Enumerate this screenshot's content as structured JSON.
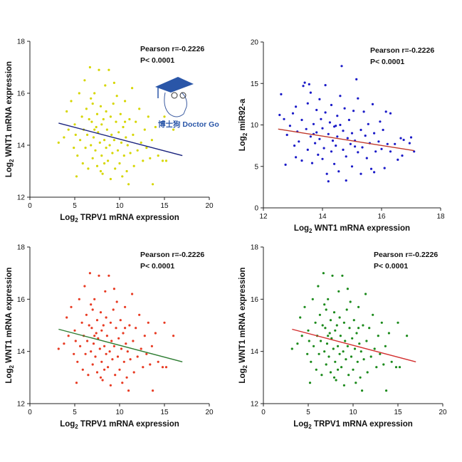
{
  "watermark": {
    "text": "博士狗 Doctor Go",
    "color": "#2a56a8"
  },
  "chart_data": [
    {
      "type": "scatter",
      "xlabel": [
        "Log",
        "2",
        " TRPV1 mRNA expression"
      ],
      "ylabel": [
        "Log",
        "2",
        " WNT1 mRNA expression"
      ],
      "xlim": [
        0,
        20
      ],
      "ylim": [
        12,
        18
      ],
      "xticks": [
        0,
        5,
        10,
        15,
        20
      ],
      "yticks": [
        12,
        14,
        16,
        18
      ],
      "annotations": [
        "Pearson r=-0.2226",
        "P< 0.0001"
      ],
      "point_color": "#d6d600",
      "line_color": "#1a237e",
      "fit_line": [
        [
          3.2,
          14.85
        ],
        [
          17,
          13.6
        ]
      ],
      "dataset": "A"
    },
    {
      "type": "scatter",
      "xlabel": [
        "Log",
        "2",
        " WNT1 mRNA expression"
      ],
      "ylabel": [
        "Log",
        "2",
        " miR92-a"
      ],
      "xlim": [
        12,
        18
      ],
      "ylim": [
        0,
        20
      ],
      "xticks": [
        12,
        14,
        16,
        18
      ],
      "yticks": [
        0,
        5,
        10,
        15,
        20
      ],
      "annotations": [
        "Pearson r=-0.2226",
        "P< 0.0001"
      ],
      "point_color": "#1a1ac8",
      "line_color": "#c0392b",
      "fit_line": [
        [
          12.5,
          9.5
        ],
        [
          17.1,
          6.9
        ]
      ],
      "dataset": "B"
    },
    {
      "type": "scatter",
      "xlabel": [
        "Log",
        "2",
        " TRPV1 mRNA expression"
      ],
      "ylabel": [
        "Log",
        "2",
        " WNT1 mRNA expression"
      ],
      "xlim": [
        0,
        20
      ],
      "ylim": [
        12,
        18
      ],
      "xticks": [
        0,
        5,
        10,
        15,
        20
      ],
      "yticks": [
        12,
        14,
        16,
        18
      ],
      "annotations": [
        "Pearson r=-0.2226",
        "P< 0.0001"
      ],
      "point_color": "#e83a22",
      "line_color": "#2e7d32",
      "fit_line": [
        [
          3.2,
          14.85
        ],
        [
          17,
          13.6
        ]
      ],
      "dataset": "A"
    },
    {
      "type": "scatter",
      "xlabel": [
        "Log",
        "2",
        " TRPV1 mRNA expression"
      ],
      "ylabel": [
        "Log",
        "2",
        " WNT1 mRNA expression"
      ],
      "xlim": [
        0,
        20
      ],
      "ylim": [
        12,
        18
      ],
      "xticks": [
        0,
        5,
        10,
        15,
        20
      ],
      "yticks": [
        12,
        14,
        16,
        18
      ],
      "annotations": [
        "Pearson r=-0.2226",
        "P< 0.0001"
      ],
      "point_color": "#1b8a1b",
      "line_color": "#d32f2f",
      "fit_line": [
        [
          3.2,
          14.85
        ],
        [
          17,
          13.6
        ]
      ],
      "dataset": "A"
    }
  ],
  "datasets": {
    "A": [
      [
        3.2,
        14.1
      ],
      [
        3.8,
        14.3
      ],
      [
        4.1,
        15.3
      ],
      [
        4.3,
        14.6
      ],
      [
        4.6,
        15.7
      ],
      [
        4.9,
        13.9
      ],
      [
        5.0,
        14.8
      ],
      [
        5.2,
        12.8
      ],
      [
        5.3,
        13.6
      ],
      [
        5.5,
        16.0
      ],
      [
        5.6,
        14.2
      ],
      [
        5.8,
        15.1
      ],
      [
        5.9,
        13.3
      ],
      [
        6.0,
        14.6
      ],
      [
        6.1,
        16.5
      ],
      [
        6.2,
        13.9
      ],
      [
        6.3,
        15.4
      ],
      [
        6.4,
        14.4
      ],
      [
        6.5,
        13.1
      ],
      [
        6.6,
        15.0
      ],
      [
        6.7,
        17.0
      ],
      [
        6.8,
        14.0
      ],
      [
        6.9,
        14.9
      ],
      [
        7.0,
        13.5
      ],
      [
        7.0,
        15.6
      ],
      [
        7.1,
        14.3
      ],
      [
        7.2,
        16.0
      ],
      [
        7.3,
        13.8
      ],
      [
        7.4,
        14.7
      ],
      [
        7.5,
        15.2
      ],
      [
        7.5,
        13.2
      ],
      [
        7.6,
        14.5
      ],
      [
        7.7,
        16.9
      ],
      [
        7.8,
        14.1
      ],
      [
        7.9,
        15.5
      ],
      [
        8.0,
        13.6
      ],
      [
        8.0,
        14.8
      ],
      [
        8.1,
        12.9
      ],
      [
        8.2,
        15.0
      ],
      [
        8.3,
        14.2
      ],
      [
        8.4,
        16.3
      ],
      [
        8.5,
        13.9
      ],
      [
        8.5,
        15.3
      ],
      [
        8.6,
        14.6
      ],
      [
        8.7,
        13.4
      ],
      [
        8.8,
        16.9
      ],
      [
        8.9,
        14.0
      ],
      [
        9.0,
        15.1
      ],
      [
        9.0,
        12.7
      ],
      [
        9.1,
        14.4
      ],
      [
        9.2,
        13.7
      ],
      [
        9.3,
        15.6
      ],
      [
        9.4,
        14.2
      ],
      [
        9.5,
        13.1
      ],
      [
        9.6,
        14.9
      ],
      [
        9.7,
        15.9
      ],
      [
        9.8,
        13.8
      ],
      [
        9.9,
        14.5
      ],
      [
        10.0,
        13.3
      ],
      [
        10.1,
        15.2
      ],
      [
        10.2,
        14.1
      ],
      [
        10.3,
        12.8
      ],
      [
        10.4,
        14.7
      ],
      [
        10.5,
        13.6
      ],
      [
        10.6,
        15.7
      ],
      [
        10.7,
        14.3
      ],
      [
        10.8,
        13.0
      ],
      [
        10.9,
        14.0
      ],
      [
        11.0,
        12.5
      ],
      [
        11.1,
        15.0
      ],
      [
        11.2,
        13.7
      ],
      [
        11.4,
        16.2
      ],
      [
        11.5,
        14.4
      ],
      [
        11.6,
        13.2
      ],
      [
        11.8,
        14.9
      ],
      [
        12.0,
        13.8
      ],
      [
        12.2,
        15.4
      ],
      [
        12.4,
        14.1
      ],
      [
        12.6,
        13.4
      ],
      [
        12.8,
        14.6
      ],
      [
        13.0,
        13.9
      ],
      [
        13.2,
        15.1
      ],
      [
        13.4,
        13.5
      ],
      [
        13.6,
        14.2
      ],
      [
        13.7,
        12.5
      ],
      [
        14.0,
        14.7
      ],
      [
        14.3,
        13.6
      ],
      [
        14.8,
        13.4
      ],
      [
        15.2,
        13.4
      ],
      [
        15.0,
        15.1
      ],
      [
        16.0,
        14.6
      ],
      [
        5.1,
        14.4
      ],
      [
        6.8,
        15.8
      ],
      [
        7.9,
        13.0
      ],
      [
        9.4,
        16.4
      ],
      [
        8.3,
        13.3
      ],
      [
        10.6,
        14.9
      ],
      [
        7.2,
        14.6
      ]
    ],
    "B": [
      [
        12.6,
        13.7
      ],
      [
        12.55,
        11.2
      ],
      [
        12.7,
        10.7
      ],
      [
        12.75,
        5.2
      ],
      [
        12.8,
        8.8
      ],
      [
        12.9,
        9.9
      ],
      [
        13.0,
        11.4
      ],
      [
        13.05,
        7.5
      ],
      [
        13.1,
        12.2
      ],
      [
        13.1,
        6.1
      ],
      [
        13.15,
        9.2
      ],
      [
        13.2,
        8.0
      ],
      [
        13.3,
        10.6
      ],
      [
        13.3,
        5.7
      ],
      [
        13.35,
        14.7
      ],
      [
        13.4,
        15.1
      ],
      [
        13.45,
        9.5
      ],
      [
        13.5,
        7.0
      ],
      [
        13.5,
        12.6
      ],
      [
        13.55,
        14.9
      ],
      [
        13.6,
        8.6
      ],
      [
        13.6,
        13.9
      ],
      [
        13.65,
        5.4
      ],
      [
        13.7,
        10.1
      ],
      [
        13.75,
        7.8
      ],
      [
        13.8,
        11.8
      ],
      [
        13.8,
        9.1
      ],
      [
        13.85,
        6.4
      ],
      [
        13.9,
        13.1
      ],
      [
        13.9,
        8.3
      ],
      [
        13.95,
        10.7
      ],
      [
        14.0,
        5.9
      ],
      [
        14.0,
        9.6
      ],
      [
        14.05,
        7.2
      ],
      [
        14.1,
        11.5
      ],
      [
        14.1,
        14.8
      ],
      [
        14.15,
        4.1
      ],
      [
        14.2,
        8.9
      ],
      [
        14.2,
        3.2
      ],
      [
        14.25,
        10.3
      ],
      [
        14.3,
        6.8
      ],
      [
        14.3,
        12.4
      ],
      [
        14.35,
        8.1
      ],
      [
        14.4,
        9.8
      ],
      [
        14.4,
        5.3
      ],
      [
        14.45,
        7.5
      ],
      [
        14.5,
        11.1
      ],
      [
        14.5,
        8.6
      ],
      [
        14.55,
        4.4
      ],
      [
        14.6,
        10.0
      ],
      [
        14.6,
        13.5
      ],
      [
        14.65,
        17.1
      ],
      [
        14.7,
        7.0
      ],
      [
        14.7,
        9.3
      ],
      [
        14.75,
        12.0
      ],
      [
        14.8,
        3.3
      ],
      [
        14.8,
        6.2
      ],
      [
        14.85,
        8.4
      ],
      [
        14.9,
        10.6
      ],
      [
        14.95,
        7.7
      ],
      [
        15.0,
        9.0
      ],
      [
        15.0,
        5.0
      ],
      [
        15.05,
        11.7
      ],
      [
        15.1,
        8.1
      ],
      [
        15.15,
        15.5
      ],
      [
        15.2,
        6.7
      ],
      [
        15.2,
        13.2
      ],
      [
        15.3,
        9.4
      ],
      [
        15.3,
        4.1
      ],
      [
        15.35,
        7.3
      ],
      [
        15.4,
        11.6
      ],
      [
        15.45,
        8.7
      ],
      [
        15.5,
        6.0
      ],
      [
        15.55,
        10.1
      ],
      [
        15.6,
        7.8
      ],
      [
        15.65,
        4.7
      ],
      [
        15.7,
        12.5
      ],
      [
        15.75,
        9.0
      ],
      [
        15.75,
        4.3
      ],
      [
        15.8,
        6.8
      ],
      [
        15.9,
        8.0
      ],
      [
        15.95,
        10.4
      ],
      [
        16.0,
        7.1
      ],
      [
        16.05,
        9.4
      ],
      [
        16.1,
        4.8
      ],
      [
        16.15,
        11.6
      ],
      [
        16.2,
        7.7
      ],
      [
        16.3,
        11.4
      ],
      [
        16.3,
        6.8
      ],
      [
        16.45,
        7.7
      ],
      [
        16.55,
        5.8
      ],
      [
        16.65,
        8.4
      ],
      [
        16.7,
        6.3
      ],
      [
        16.75,
        8.2
      ],
      [
        16.95,
        7.8
      ],
      [
        17.0,
        8.5
      ],
      [
        17.1,
        6.8
      ],
      [
        14.45,
        9.9
      ],
      [
        13.7,
        8.9
      ],
      [
        15.1,
        7.4
      ]
    ]
  }
}
